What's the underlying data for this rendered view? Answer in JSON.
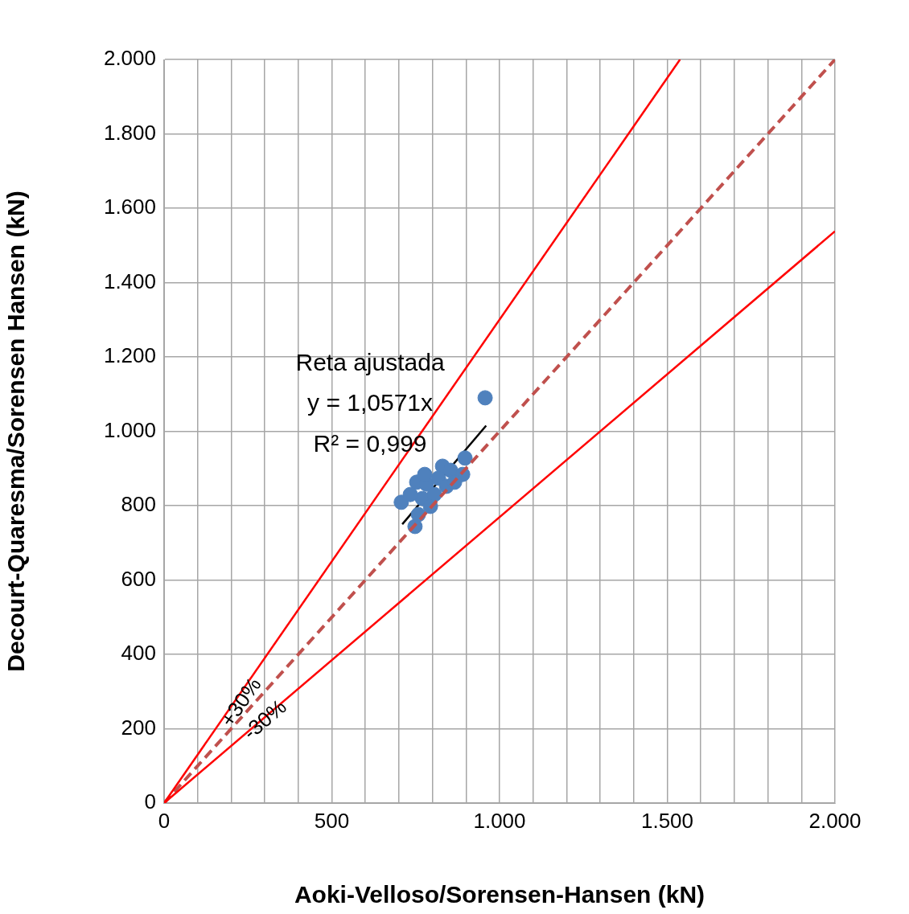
{
  "chart_data": {
    "type": "scatter",
    "xlabel": "Aoki-Velloso/Sorensen-Hansen (kN)",
    "ylabel": "Decourt-Quaresma/Sorensen Hansen (kN)",
    "xlim": [
      0,
      2000
    ],
    "ylim": [
      0,
      2000
    ],
    "xticks": [
      0,
      {
        "value": 100,
        "label": null
      },
      {
        "value": 200,
        "label": null
      },
      {
        "value": 300,
        "label": null
      },
      {
        "value": 400,
        "label": null
      },
      500,
      {
        "value": 600,
        "label": null
      },
      {
        "value": 700,
        "label": null
      },
      {
        "value": 800,
        "label": null
      },
      {
        "value": 900,
        "label": null
      },
      {
        "value": 1000,
        "label": "1.000"
      },
      {
        "value": 1100,
        "label": null
      },
      {
        "value": 1200,
        "label": null
      },
      {
        "value": 1300,
        "label": null
      },
      {
        "value": 1400,
        "label": null
      },
      {
        "value": 1500,
        "label": "1.500"
      },
      {
        "value": 1600,
        "label": null
      },
      {
        "value": 1700,
        "label": null
      },
      {
        "value": 1800,
        "label": null
      },
      {
        "value": 1900,
        "label": null
      },
      {
        "value": 2000,
        "label": "2.000"
      }
    ],
    "yticks": [
      0,
      200,
      400,
      600,
      800,
      {
        "value": 1000,
        "label": "1.000"
      },
      {
        "value": 1200,
        "label": "1.200"
      },
      {
        "value": 1400,
        "label": "1.400"
      },
      {
        "value": 1600,
        "label": "1.600"
      },
      {
        "value": 1800,
        "label": "1.800"
      },
      {
        "value": 2000,
        "label": "2.000"
      }
    ],
    "grid": true,
    "legend": false,
    "series": [
      {
        "type": "line",
        "name": "+30%",
        "color": "#ff0000",
        "line_style": "solid",
        "marker": "none",
        "x": [
          0,
          1538
        ],
        "values": [
          0,
          2000
        ]
      },
      {
        "type": "line",
        "name": "-30%",
        "color": "#ff0000",
        "line_style": "solid",
        "marker": "none",
        "x": [
          0,
          2000
        ],
        "values": [
          0,
          1538
        ]
      },
      {
        "type": "line",
        "color": "#c0504d",
        "line_style": "dashed",
        "marker": "none",
        "x": [
          0,
          2000
        ],
        "values": [
          0,
          2000
        ]
      },
      {
        "color": "#4f81bd",
        "marker": "circle",
        "x": [
          957,
          707,
          748,
          753,
          782,
          770,
          806,
          830,
          854,
          890,
          897,
          818,
          794,
          842,
          866,
          734,
          758,
          777
        ],
        "values": [
          1090,
          809,
          744,
          863,
          858,
          819,
          830,
          906,
          895,
          884,
          928,
          874,
          798,
          852,
          863,
          830,
          776,
          884
        ]
      },
      {
        "type": "line",
        "color": "#000000",
        "line_style": "solid",
        "marker": "none",
        "x": [
          710,
          960
        ],
        "values": [
          750,
          1015
        ]
      }
    ],
    "annotations": [
      "Reta ajustada",
      "y = 1,0571x",
      "R² = 0,999"
    ]
  }
}
